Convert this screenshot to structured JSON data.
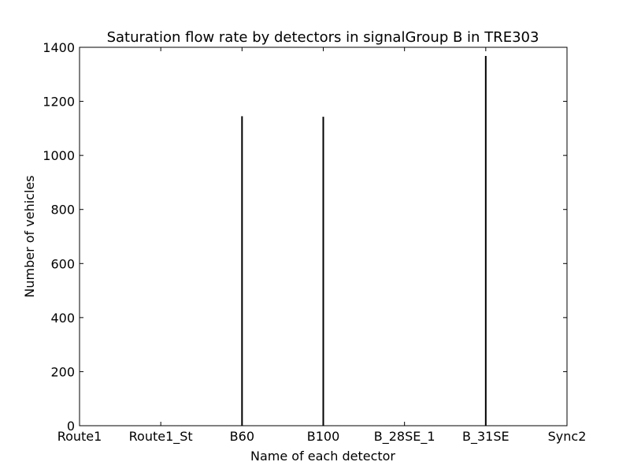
{
  "chart_data": {
    "type": "bar",
    "title": "Saturation flow rate by detectors in signalGroup B in TRE303",
    "xlabel": "Name of each detector",
    "ylabel": "Number of vehicles",
    "categories": [
      "Route1",
      "Route1_St",
      "B60",
      "B100",
      "B_28SE_1",
      "B_31SE",
      "Sync2"
    ],
    "values": [
      0,
      0,
      1145,
      1143,
      0,
      1368,
      0
    ],
    "ylim": [
      0,
      1400
    ],
    "yticks": [
      0,
      200,
      400,
      600,
      800,
      1000,
      1200,
      1400
    ],
    "grid": false,
    "bar_color": "#000000"
  }
}
